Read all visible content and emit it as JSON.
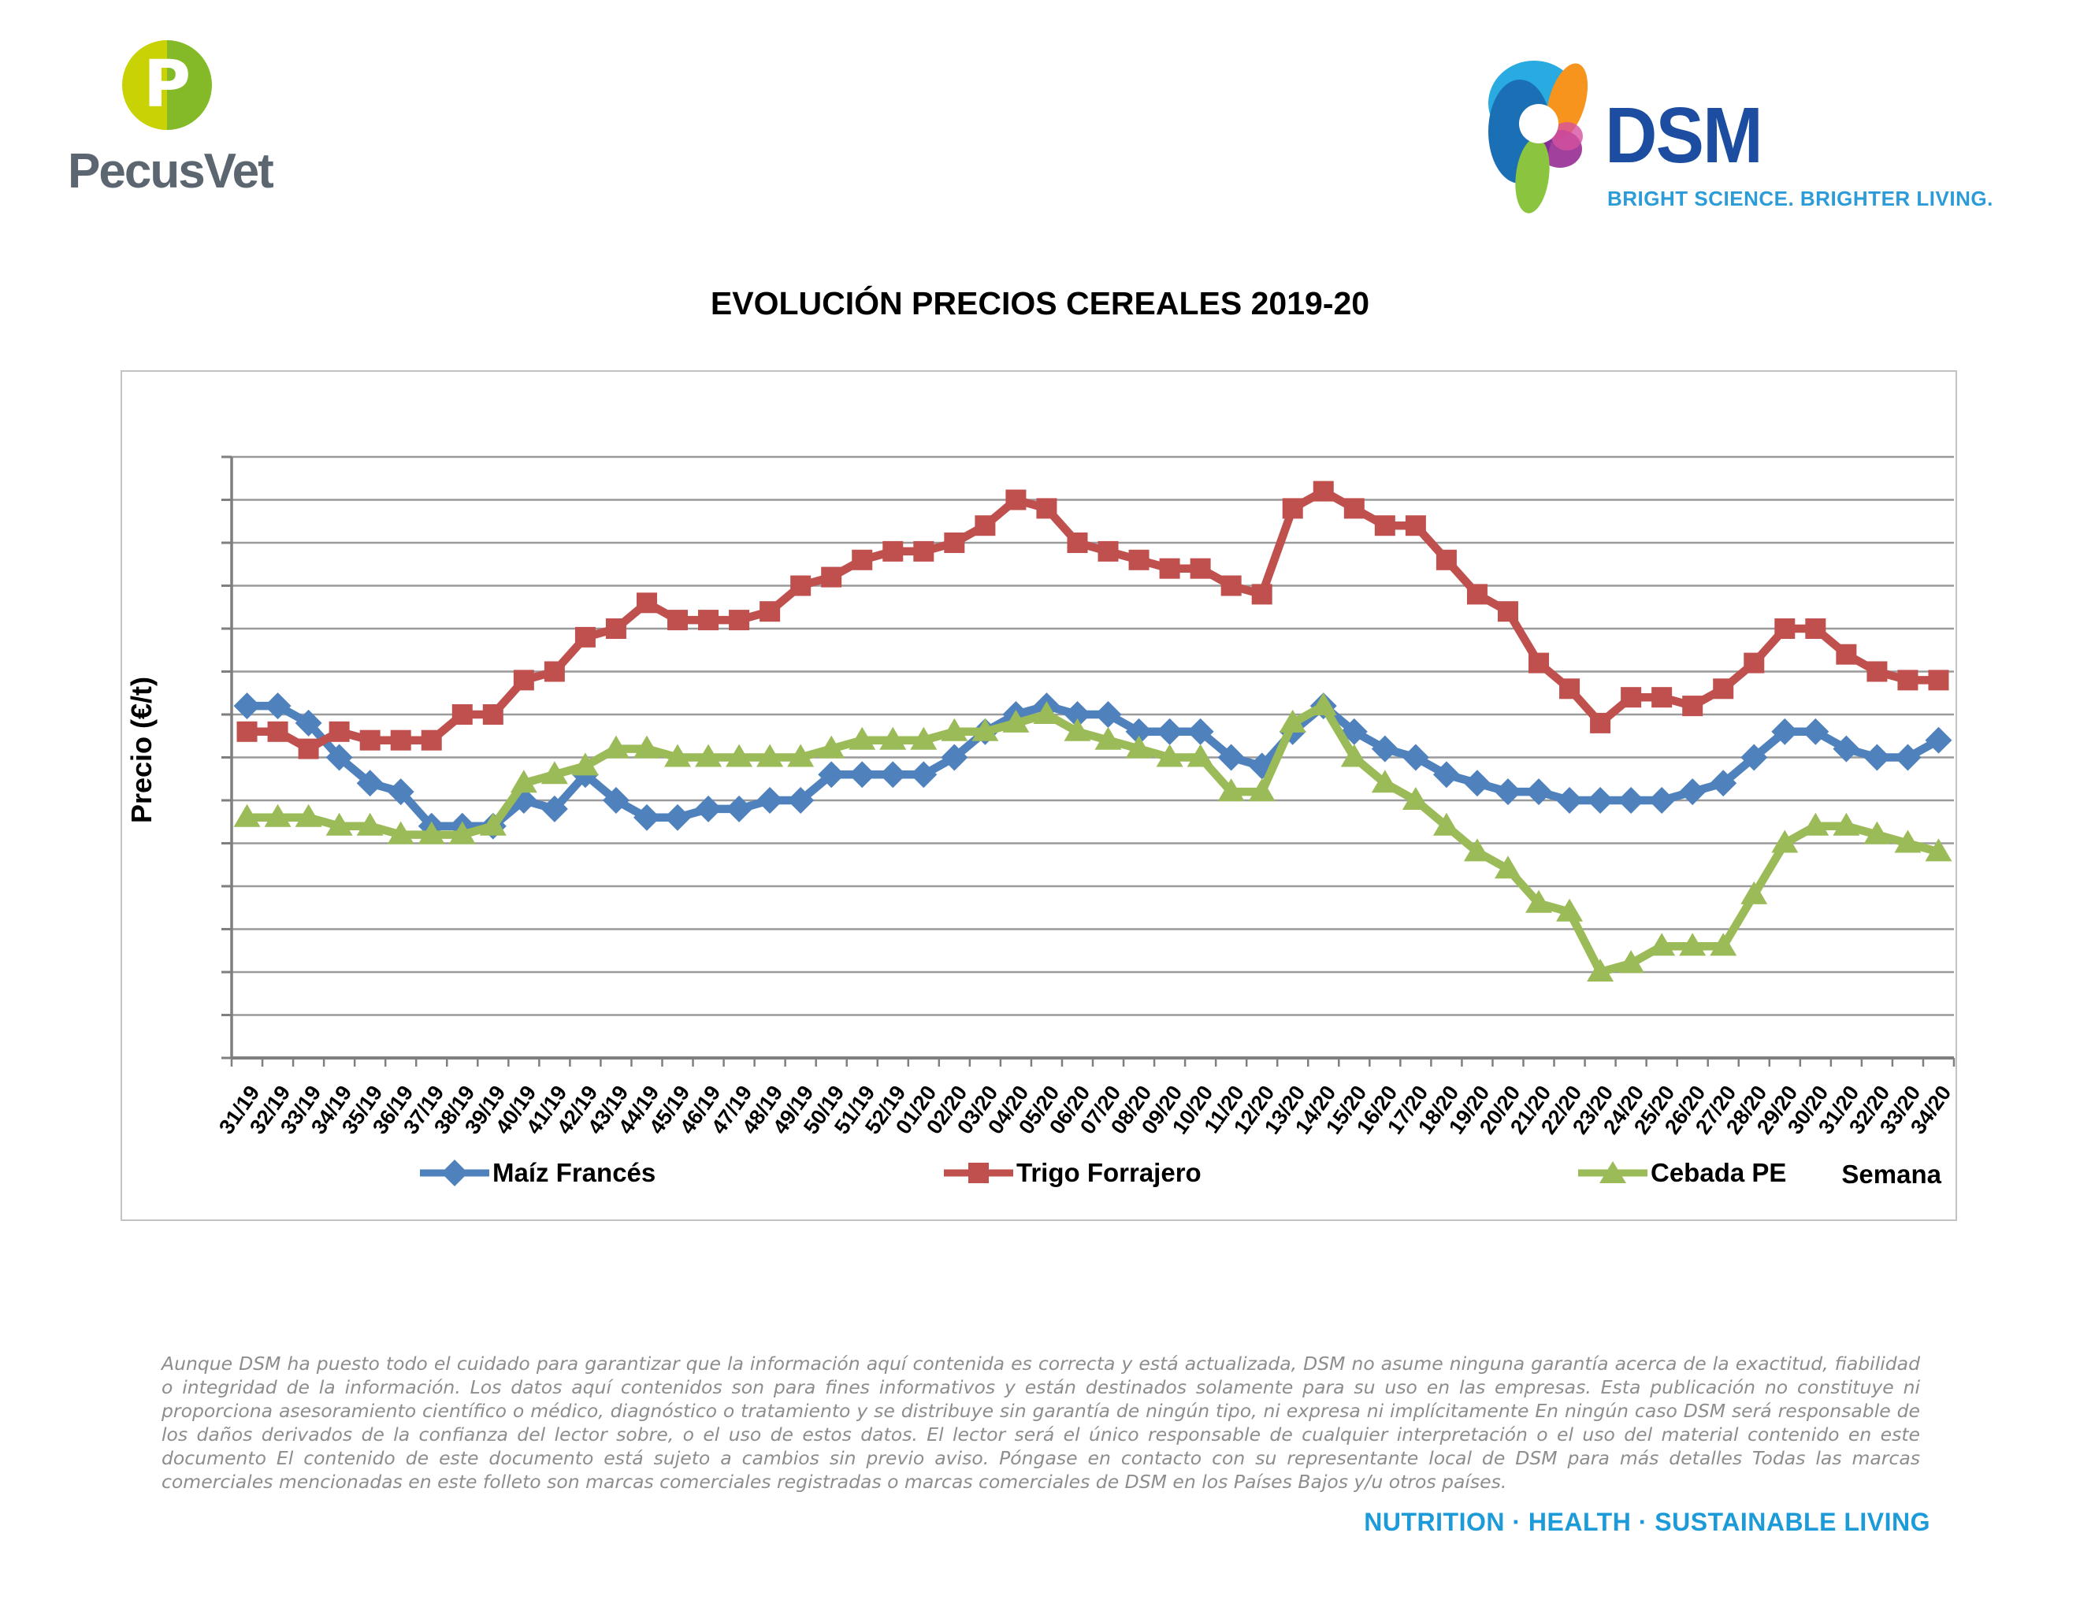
{
  "header": {
    "pecusvet": {
      "name": "PecusVet",
      "monogram": "P"
    },
    "dsm": {
      "name": "DSM",
      "tagline": "BRIGHT SCIENCE. BRIGHTER LIVING."
    }
  },
  "chart_data": {
    "type": "line",
    "title": "EVOLUCIÓN PRECIOS CEREALES 2019-20",
    "xlabel": "Semana",
    "ylabel": "Precio (€/t)",
    "ylim": [
      150,
      220
    ],
    "ytick_step": 5,
    "grid": true,
    "legend_position": "bottom",
    "x": [
      "31/19",
      "32/19",
      "33/19",
      "34/19",
      "35/19",
      "36/19",
      "37/19",
      "38/19",
      "39/19",
      "40/19",
      "41/19",
      "42/19",
      "43/19",
      "44/19",
      "45/19",
      "46/19",
      "47/19",
      "48/19",
      "49/19",
      "50/19",
      "51/19",
      "52/19",
      "01/20",
      "02/20",
      "03/20",
      "04/20",
      "05/20",
      "06/20",
      "07/20",
      "08/20",
      "09/20",
      "10/20",
      "11/20",
      "12/20",
      "13/20",
      "14/20",
      "15/20",
      "16/20",
      "17/20",
      "18/20",
      "19/20",
      "20/20",
      "21/20",
      "22/20",
      "23/20",
      "24/20",
      "25/20",
      "26/20",
      "27/20",
      "28/20",
      "29/20",
      "30/20",
      "31/20",
      "32/20",
      "33/20",
      "34/20"
    ],
    "series": [
      {
        "name": "Maíz Francés",
        "color": "#4F81BD",
        "marker": "diamond",
        "values": [
          191,
          191,
          189,
          185,
          182,
          181,
          177,
          177,
          177,
          180,
          179,
          183,
          180,
          178,
          178,
          179,
          179,
          180,
          180,
          183,
          183,
          183,
          183,
          185,
          188,
          190,
          191,
          190,
          190,
          188,
          188,
          188,
          185,
          184,
          188,
          191,
          188,
          186,
          185,
          183,
          182,
          181,
          181,
          180,
          180,
          180,
          180,
          181,
          182,
          185,
          188,
          188,
          186,
          185,
          185,
          187
        ]
      },
      {
        "name": "Trigo Forrajero",
        "color": "#C0504D",
        "marker": "square",
        "values": [
          188,
          188,
          186,
          188,
          187,
          187,
          187,
          190,
          190,
          194,
          195,
          199,
          200,
          203,
          201,
          201,
          201,
          202,
          205,
          206,
          208,
          209,
          209,
          210,
          212,
          215,
          214,
          210,
          209,
          208,
          207,
          207,
          205,
          204,
          214,
          216,
          214,
          212,
          212,
          208,
          204,
          202,
          196,
          193,
          189,
          192,
          192,
          191,
          193,
          196,
          200,
          200,
          197,
          195,
          194,
          194
        ]
      },
      {
        "name": "Cebada PE",
        "color": "#9BBB59",
        "marker": "triangle",
        "values": [
          178,
          178,
          178,
          177,
          177,
          176,
          176,
          176,
          177,
          182,
          183,
          184,
          186,
          186,
          185,
          185,
          185,
          185,
          185,
          186,
          187,
          187,
          187,
          188,
          188,
          189,
          190,
          188,
          187,
          186,
          185,
          185,
          181,
          181,
          189,
          191,
          185,
          182,
          180,
          177,
          174,
          172,
          168,
          167,
          160,
          161,
          163,
          163,
          163,
          169,
          175,
          177,
          177,
          176,
          175,
          174
        ]
      }
    ]
  },
  "footer": {
    "disclaimer": "Aunque DSM ha puesto todo el cuidado para garantizar que la información aquí contenida es correcta y está actualizada, DSM no asume ninguna garantía acerca de la exactitud, fiabilidad o integridad de la información. Los datos aquí contenidos son para fines informativos y están destinados solamente para su uso en las empresas. Esta publicación no constituye ni proporciona asesoramiento científico o médico, diagnóstico o tratamiento y se distribuye sin garantía de ningún tipo, ni expresa ni implícitamente En ningún caso DSM será responsable de los daños derivados de la confianza del lector sobre, o el uso de estos datos. El lector será el único responsable de cualquier interpretación o el uso del material contenido en este documento El contenido de este documento está sujeto a cambios sin previo aviso. Póngase en contacto con su representante local de DSM para más detalles Todas las marcas comerciales mencionadas en este folleto son marcas comerciales registradas o marcas comerciales de DSM en los Países Bajos y/u otros países.",
    "tagline": "NUTRITION · HEALTH · SUSTAINABLE LIVING"
  }
}
